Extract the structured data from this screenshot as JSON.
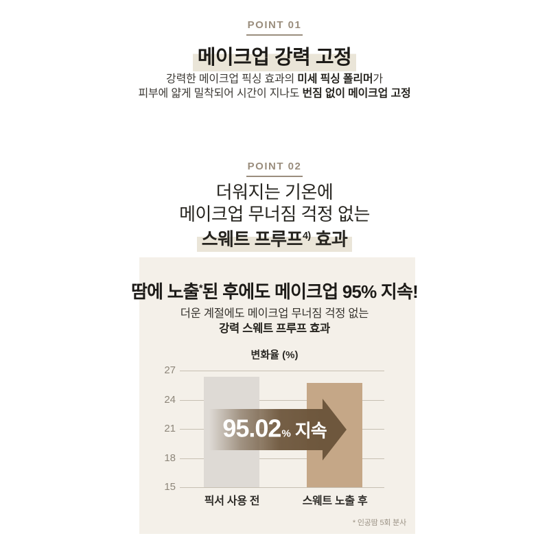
{
  "colors": {
    "panel_bg": "#f4f0e9",
    "accent_brown": "#6e573d",
    "highlight": "#eae5d8",
    "point_label": "#9a8d7d",
    "bar_before": "#dedad5",
    "bar_after": "#c5a787"
  },
  "point1": {
    "label": "POINT 01",
    "title": "메이크업 강력 고정",
    "body": [
      {
        "normal": "강력한 메이크업 픽싱 효과의 ",
        "bold": "미세 픽싱 폴리머",
        "tail": "가"
      },
      {
        "normal": "피부에 얇게 밀착되어 시간이 지나도 ",
        "bold": "번짐 없이 메이크업 고정",
        "tail": ""
      }
    ]
  },
  "point2": {
    "label": "POINT 02",
    "lines": [
      "더워지는 기온에",
      "메이크업 무너짐 걱정 없는"
    ],
    "highlight_line": {
      "text": "스웨트 프루프",
      "sup": "4)",
      "tail": " 효과"
    }
  },
  "panel": {
    "headline": {
      "pre": "땀에 노출",
      "sup": "*",
      "post": "된 후에도 메이크업 95% 지속!"
    },
    "sub1": "더운 계절에도 메이크업 무너짐 걱정 없는",
    "sub2": "강력 스웨트 프루프 효과",
    "footnote": "* 인공땀 5회 분사"
  },
  "chart_data": {
    "type": "bar",
    "title": "변화율 (%)",
    "categories": [
      "픽서 사용 전",
      "스웨트 노출 후"
    ],
    "values": [
      26.4,
      25.7
    ],
    "ylim": [
      15,
      27
    ],
    "yticks": [
      27,
      24,
      21,
      18,
      15
    ],
    "grid": true,
    "legend_position": "none",
    "bar_colors": [
      "#dedad5",
      "#c5a787"
    ],
    "annotation": {
      "number": "95.02",
      "percent": "%",
      "label": "지속"
    }
  }
}
